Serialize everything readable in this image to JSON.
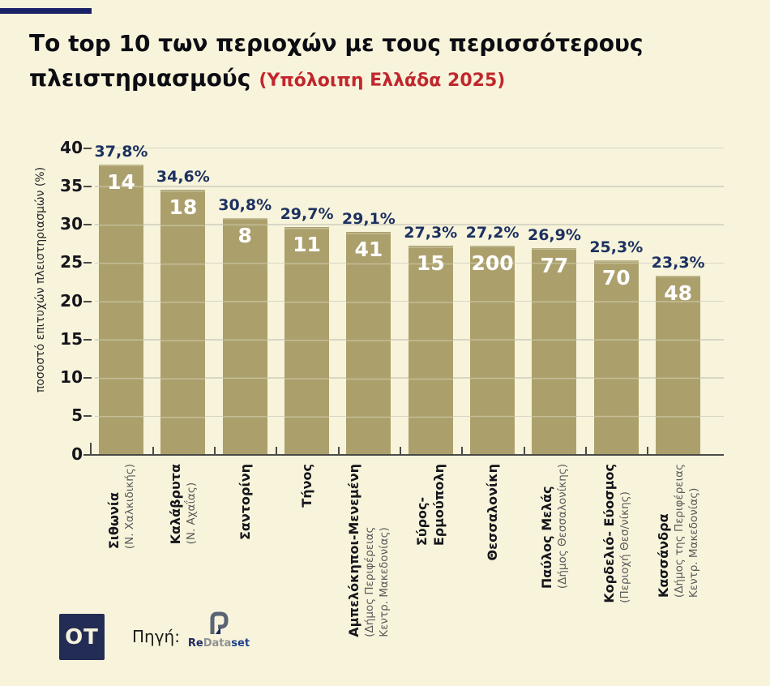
{
  "header": {
    "title_line1": "Το top 10 των περιοχών με τους περισσότερους",
    "title_line2": "πλειστηριασμούς",
    "subtitle": "(Υπόλοιπη Ελλάδα 2025)",
    "accent_color": "#1b2167",
    "title_color": "#0c0c13",
    "subtitle_color": "#c1272d"
  },
  "chart_data": {
    "type": "bar",
    "title": "Το top 10 των περιοχών με τους περισσότερους πλειστηριασμούς (Υπόλοιπη Ελλάδα 2025)",
    "xlabel": "",
    "ylabel": "ποσοστό επιτυχών πλειστηριασμών (%)",
    "ylim": [
      0,
      40
    ],
    "yticks": [
      0,
      5,
      10,
      15,
      20,
      25,
      30,
      35,
      40
    ],
    "grid": true,
    "legend": "none",
    "bar_color": "#aba06c",
    "background_color": "#f8f4db",
    "value_label_color": "#1d3261",
    "count_label_color": "#ffffff",
    "categories": [
      {
        "name_lines": [
          "Σιθωνία"
        ],
        "sub_lines": [
          "(Ν. Χαλκιδικής)"
        ],
        "value": 37.8,
        "value_label": "37,8%",
        "count": 14
      },
      {
        "name_lines": [
          "Καλάβρυτα"
        ],
        "sub_lines": [
          "(Ν. Αχαΐας)"
        ],
        "value": 34.6,
        "value_label": "34,6%",
        "count": 18
      },
      {
        "name_lines": [
          "Σαντορίνη"
        ],
        "sub_lines": [],
        "value": 30.8,
        "value_label": "30,8%",
        "count": 8
      },
      {
        "name_lines": [
          "Τήνος"
        ],
        "sub_lines": [],
        "value": 29.7,
        "value_label": "29,7%",
        "count": 11
      },
      {
        "name_lines": [
          "Αμπελόκηποι-Μενεμένη"
        ],
        "sub_lines": [
          "(Δήμος Περιφέρειας",
          "Κεντρ. Μακεδονίας)"
        ],
        "value": 29.1,
        "value_label": "29,1%",
        "count": 41
      },
      {
        "name_lines": [
          "Σύρος-",
          "Ερμούπολη"
        ],
        "sub_lines": [],
        "value": 27.3,
        "value_label": "27,3%",
        "count": 15
      },
      {
        "name_lines": [
          "Θεσσαλονίκη"
        ],
        "sub_lines": [],
        "value": 27.2,
        "value_label": "27,2%",
        "count": 200
      },
      {
        "name_lines": [
          "Παύλος Μελάς"
        ],
        "sub_lines": [
          "(Δήμος Θεσσαλονίκης)"
        ],
        "value": 26.9,
        "value_label": "26,9%",
        "count": 77
      },
      {
        "name_lines": [
          "Κορδελιό- Εύοσμος"
        ],
        "sub_lines": [
          "(Περιοχή Θεσ/νίκης)"
        ],
        "value": 25.3,
        "value_label": "25,3%",
        "count": 70
      },
      {
        "name_lines": [
          "Κασσάνδρα"
        ],
        "sub_lines": [
          "(Δήμος της Περιφέρειας",
          "Κεντρ. Μακεδονίας)"
        ],
        "value": 23.3,
        "value_label": "23,3%",
        "count": 48
      }
    ]
  },
  "footer": {
    "ot_logo_text": "OT",
    "source_label": "Πηγή:",
    "redataset": {
      "re": "Re",
      "data": "Data",
      "set": "set"
    }
  }
}
